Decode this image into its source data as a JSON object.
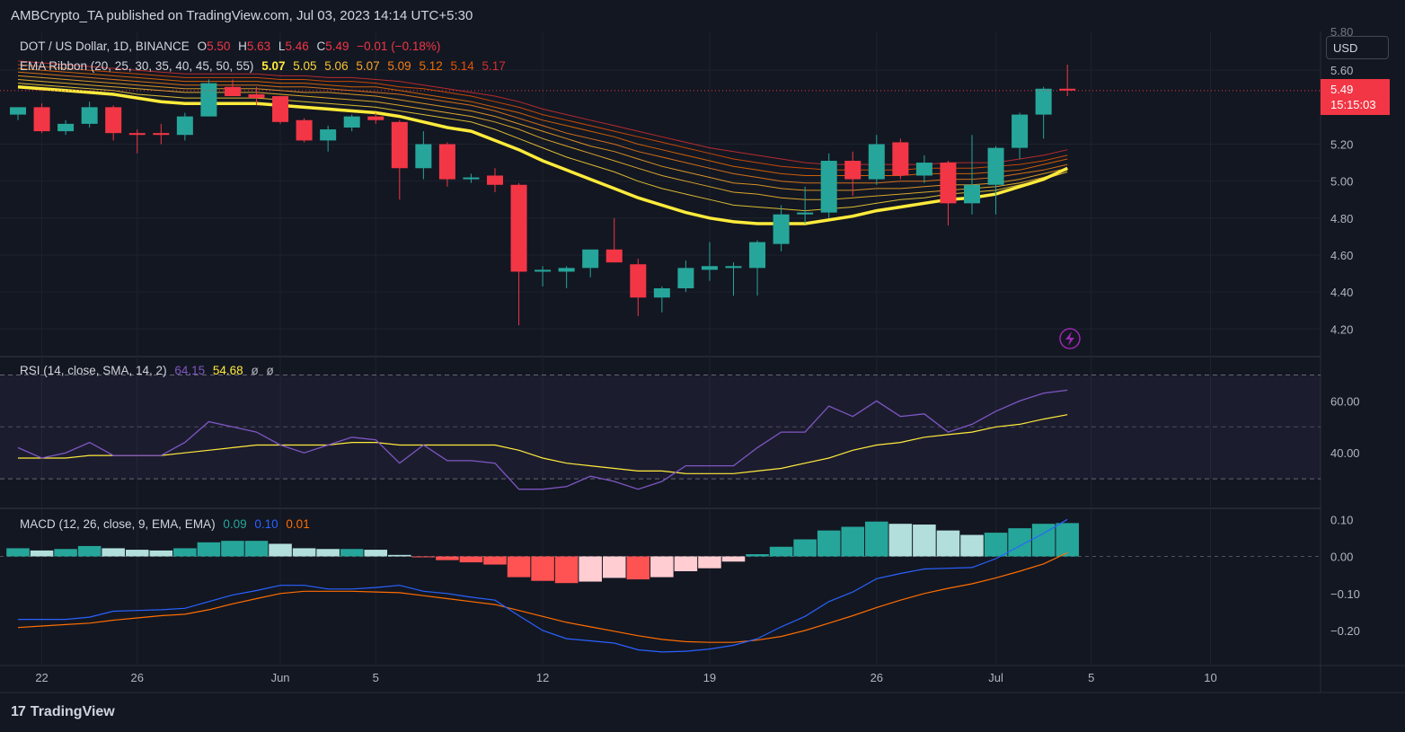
{
  "header": "AMBCrypto_TA published on TradingView.com, Jul 03, 2023 14:14 UTC+5:30",
  "footer_brand": "TradingView",
  "footer_logo_glyph": "17",
  "currency": "USD",
  "last_price": "5.49",
  "countdown": "15:15:03",
  "colors": {
    "bg": "#131722",
    "up": "#26a69a",
    "down": "#f23645",
    "ema_fast": "#ffeb3b",
    "rsi": "#7e57c2",
    "rsi_sma": "#ffeb3b",
    "macd": "#2962ff",
    "signal": "#ff6d00"
  },
  "price_legend": {
    "symbol": "DOT / US Dollar, 1D, BINANCE",
    "o_label": "O",
    "o": "5.50",
    "h_label": "H",
    "h": "5.63",
    "l_label": "L",
    "l": "5.46",
    "c_label": "C",
    "c": "5.49",
    "change": "−0.01 (−0.18%)"
  },
  "ema_legend": {
    "label": "EMA Ribbon (20, 25, 30, 35, 40, 45, 50, 55)",
    "values": [
      "5.07",
      "5.05",
      "5.06",
      "5.07",
      "5.09",
      "5.12",
      "5.14",
      "5.17"
    ]
  },
  "rsi_legend": {
    "label": "RSI (14, close, SMA, 14, 2)",
    "rsi": "64.15",
    "sma": "54.68",
    "extra1": "ø",
    "extra2": "ø"
  },
  "macd_legend": {
    "label": "MACD (12, 26, close, 9, EMA, EMA)",
    "hist": "0.09",
    "macd": "0.10",
    "signal": "0.01"
  },
  "chart_data": {
    "type": "candlestick",
    "title": "DOT / US Dollar, 1D, BINANCE",
    "x_labels": [
      {
        "day": 1,
        "label": "22"
      },
      {
        "day": 5,
        "label": "26"
      },
      {
        "day": 11,
        "label": "Jun"
      },
      {
        "day": 15,
        "label": "5"
      },
      {
        "day": 22,
        "label": "12"
      },
      {
        "day": 29,
        "label": "19"
      },
      {
        "day": 36,
        "label": "26"
      },
      {
        "day": 41,
        "label": "Jul"
      },
      {
        "day": 45,
        "label": "5"
      },
      {
        "day": 50,
        "label": "10"
      }
    ],
    "price_axis": {
      "ylim": [
        4.07,
        5.81
      ],
      "ticks": [
        "5.60",
        "5.20",
        "5.00",
        "4.80",
        "4.60",
        "4.40",
        "4.20"
      ],
      "top_partial": "5.80"
    },
    "candles": [
      {
        "o": 5.36,
        "h": 5.39,
        "l": 5.33,
        "c": 5.4
      },
      {
        "o": 5.4,
        "h": 5.42,
        "l": 5.26,
        "c": 5.27
      },
      {
        "o": 5.27,
        "h": 5.33,
        "l": 5.25,
        "c": 5.31
      },
      {
        "o": 5.31,
        "h": 5.43,
        "l": 5.29,
        "c": 5.4
      },
      {
        "o": 5.4,
        "h": 5.41,
        "l": 5.22,
        "c": 5.26
      },
      {
        "o": 5.26,
        "h": 5.28,
        "l": 5.15,
        "c": 5.25
      },
      {
        "o": 5.26,
        "h": 5.31,
        "l": 5.2,
        "c": 5.25
      },
      {
        "o": 5.25,
        "h": 5.37,
        "l": 5.22,
        "c": 5.35
      },
      {
        "o": 5.35,
        "h": 5.55,
        "l": 5.35,
        "c": 5.53
      },
      {
        "o": 5.51,
        "h": 5.55,
        "l": 5.46,
        "c": 5.46
      },
      {
        "o": 5.47,
        "h": 5.51,
        "l": 5.41,
        "c": 5.45
      },
      {
        "o": 5.46,
        "h": 5.46,
        "l": 5.31,
        "c": 5.32
      },
      {
        "o": 5.33,
        "h": 5.34,
        "l": 5.21,
        "c": 5.22
      },
      {
        "o": 5.22,
        "h": 5.3,
        "l": 5.16,
        "c": 5.28
      },
      {
        "o": 5.29,
        "h": 5.36,
        "l": 5.27,
        "c": 5.35
      },
      {
        "o": 5.35,
        "h": 5.37,
        "l": 5.31,
        "c": 5.33
      },
      {
        "o": 5.32,
        "h": 5.33,
        "l": 4.9,
        "c": 5.07
      },
      {
        "o": 5.07,
        "h": 5.27,
        "l": 5.01,
        "c": 5.2
      },
      {
        "o": 5.2,
        "h": 5.21,
        "l": 4.97,
        "c": 5.01
      },
      {
        "o": 5.01,
        "h": 5.04,
        "l": 4.99,
        "c": 5.02
      },
      {
        "o": 5.03,
        "h": 5.07,
        "l": 4.94,
        "c": 4.98
      },
      {
        "o": 4.98,
        "h": 4.99,
        "l": 4.22,
        "c": 4.51
      },
      {
        "o": 4.51,
        "h": 4.54,
        "l": 4.43,
        "c": 4.52
      },
      {
        "o": 4.51,
        "h": 4.54,
        "l": 4.42,
        "c": 4.53
      },
      {
        "o": 4.53,
        "h": 4.62,
        "l": 4.48,
        "c": 4.63
      },
      {
        "o": 4.63,
        "h": 4.8,
        "l": 4.56,
        "c": 4.56
      },
      {
        "o": 4.55,
        "h": 4.58,
        "l": 4.27,
        "c": 4.37
      },
      {
        "o": 4.37,
        "h": 4.43,
        "l": 4.29,
        "c": 4.42
      },
      {
        "o": 4.42,
        "h": 4.57,
        "l": 4.4,
        "c": 4.53
      },
      {
        "o": 4.52,
        "h": 4.67,
        "l": 4.46,
        "c": 4.54
      },
      {
        "o": 4.53,
        "h": 4.56,
        "l": 4.38,
        "c": 4.54
      },
      {
        "o": 4.53,
        "h": 4.68,
        "l": 4.38,
        "c": 4.67
      },
      {
        "o": 4.66,
        "h": 4.87,
        "l": 4.62,
        "c": 4.82
      },
      {
        "o": 4.82,
        "h": 4.97,
        "l": 4.77,
        "c": 4.83
      },
      {
        "o": 4.83,
        "h": 5.15,
        "l": 4.8,
        "c": 5.11
      },
      {
        "o": 5.11,
        "h": 5.16,
        "l": 4.92,
        "c": 5.01
      },
      {
        "o": 5.01,
        "h": 5.25,
        "l": 4.98,
        "c": 5.2
      },
      {
        "o": 5.21,
        "h": 5.23,
        "l": 5.01,
        "c": 5.03
      },
      {
        "o": 5.03,
        "h": 5.14,
        "l": 4.99,
        "c": 5.1
      },
      {
        "o": 5.1,
        "h": 5.11,
        "l": 4.76,
        "c": 4.88
      },
      {
        "o": 4.88,
        "h": 5.25,
        "l": 4.82,
        "c": 4.98
      },
      {
        "o": 4.98,
        "h": 5.19,
        "l": 4.82,
        "c": 5.18
      },
      {
        "o": 5.18,
        "h": 5.37,
        "l": 5.12,
        "c": 5.36
      },
      {
        "o": 5.36,
        "h": 5.51,
        "l": 5.23,
        "c": 5.5
      },
      {
        "o": 5.5,
        "h": 5.63,
        "l": 5.46,
        "c": 5.49
      }
    ],
    "ema_ribbon": {
      "periods": [
        20,
        25,
        30,
        35,
        40,
        45,
        50,
        55
      ],
      "series": [
        [
          5.51,
          5.5,
          5.49,
          5.48,
          5.47,
          5.45,
          5.43,
          5.42,
          5.42,
          5.42,
          5.42,
          5.41,
          5.4,
          5.39,
          5.38,
          5.37,
          5.35,
          5.32,
          5.29,
          5.27,
          5.22,
          5.17,
          5.11,
          5.06,
          5.01,
          4.96,
          4.91,
          4.87,
          4.83,
          4.8,
          4.78,
          4.77,
          4.77,
          4.77,
          4.79,
          4.81,
          4.84,
          4.86,
          4.88,
          4.9,
          4.91,
          4.93,
          4.97,
          5.01,
          5.07
        ],
        [
          5.53,
          5.52,
          5.51,
          5.5,
          5.49,
          5.47,
          5.46,
          5.45,
          5.45,
          5.45,
          5.45,
          5.44,
          5.43,
          5.42,
          5.41,
          5.4,
          5.38,
          5.36,
          5.34,
          5.32,
          5.28,
          5.23,
          5.18,
          5.13,
          5.09,
          5.05,
          5.0,
          4.96,
          4.93,
          4.9,
          4.87,
          4.86,
          4.85,
          4.84,
          4.85,
          4.86,
          4.88,
          4.9,
          4.91,
          4.93,
          4.94,
          4.95,
          4.98,
          5.01,
          5.05
        ],
        [
          5.55,
          5.54,
          5.53,
          5.52,
          5.51,
          5.5,
          5.49,
          5.48,
          5.48,
          5.48,
          5.48,
          5.47,
          5.46,
          5.45,
          5.44,
          5.43,
          5.41,
          5.39,
          5.37,
          5.35,
          5.32,
          5.28,
          5.23,
          5.19,
          5.15,
          5.11,
          5.07,
          5.03,
          5.0,
          4.97,
          4.94,
          4.93,
          4.91,
          4.9,
          4.9,
          4.91,
          4.92,
          4.93,
          4.94,
          4.95,
          4.96,
          4.97,
          4.99,
          5.02,
          5.06
        ],
        [
          5.57,
          5.56,
          5.55,
          5.54,
          5.53,
          5.52,
          5.51,
          5.5,
          5.5,
          5.5,
          5.5,
          5.49,
          5.48,
          5.48,
          5.47,
          5.46,
          5.44,
          5.42,
          5.4,
          5.38,
          5.35,
          5.31,
          5.27,
          5.23,
          5.19,
          5.16,
          5.12,
          5.08,
          5.05,
          5.02,
          4.99,
          4.98,
          4.96,
          4.95,
          4.95,
          4.95,
          4.96,
          4.96,
          4.97,
          4.98,
          4.98,
          4.99,
          5.01,
          5.04,
          5.07
        ],
        [
          5.59,
          5.58,
          5.57,
          5.56,
          5.55,
          5.54,
          5.53,
          5.52,
          5.52,
          5.52,
          5.52,
          5.51,
          5.51,
          5.5,
          5.49,
          5.48,
          5.47,
          5.45,
          5.43,
          5.41,
          5.38,
          5.34,
          5.3,
          5.26,
          5.23,
          5.2,
          5.16,
          5.13,
          5.1,
          5.07,
          5.04,
          5.02,
          5.0,
          4.99,
          4.99,
          4.99,
          4.99,
          5.0,
          5.0,
          5.01,
          5.01,
          5.02,
          5.04,
          5.06,
          5.09
        ],
        [
          5.61,
          5.6,
          5.59,
          5.58,
          5.57,
          5.56,
          5.55,
          5.54,
          5.54,
          5.54,
          5.54,
          5.53,
          5.53,
          5.52,
          5.51,
          5.51,
          5.49,
          5.47,
          5.45,
          5.43,
          5.4,
          5.37,
          5.33,
          5.3,
          5.27,
          5.24,
          5.2,
          5.17,
          5.14,
          5.11,
          5.08,
          5.06,
          5.04,
          5.03,
          5.03,
          5.03,
          5.03,
          5.03,
          5.04,
          5.04,
          5.04,
          5.05,
          5.06,
          5.09,
          5.12
        ],
        [
          5.63,
          5.62,
          5.61,
          5.6,
          5.59,
          5.58,
          5.57,
          5.56,
          5.56,
          5.56,
          5.56,
          5.55,
          5.55,
          5.54,
          5.54,
          5.53,
          5.51,
          5.5,
          5.48,
          5.46,
          5.43,
          5.4,
          5.36,
          5.33,
          5.3,
          5.27,
          5.24,
          5.21,
          5.18,
          5.15,
          5.12,
          5.1,
          5.08,
          5.07,
          5.06,
          5.06,
          5.06,
          5.06,
          5.07,
          5.07,
          5.07,
          5.08,
          5.09,
          5.11,
          5.14
        ],
        [
          5.65,
          5.64,
          5.63,
          5.62,
          5.61,
          5.6,
          5.59,
          5.58,
          5.58,
          5.58,
          5.58,
          5.57,
          5.57,
          5.56,
          5.56,
          5.55,
          5.54,
          5.52,
          5.5,
          5.48,
          5.46,
          5.43,
          5.39,
          5.36,
          5.33,
          5.3,
          5.27,
          5.24,
          5.21,
          5.18,
          5.16,
          5.14,
          5.12,
          5.1,
          5.09,
          5.09,
          5.09,
          5.09,
          5.09,
          5.1,
          5.1,
          5.1,
          5.12,
          5.14,
          5.17
        ]
      ]
    },
    "rsi": {
      "ylim": [
        20,
        75
      ],
      "ticks": [
        "60.00",
        "40.00"
      ],
      "upper_band": 70,
      "middle_band": 50,
      "lower_band": 30,
      "rsi_values": [
        42,
        38,
        40,
        44,
        39,
        39,
        39,
        44,
        52,
        50,
        48,
        43,
        40,
        43,
        46,
        45,
        36,
        43,
        37,
        37,
        36,
        26,
        26,
        27,
        31,
        29,
        26,
        29,
        35,
        35,
        35,
        42,
        48,
        48,
        58,
        54,
        60,
        54,
        55,
        48,
        51,
        56,
        60,
        63,
        64.15
      ],
      "sma_values": [
        38,
        38,
        38,
        39,
        39,
        39,
        39,
        40,
        41,
        42,
        43,
        43,
        43,
        43,
        44,
        44,
        43,
        43,
        43,
        43,
        43,
        41,
        38,
        36,
        35,
        34,
        33,
        33,
        32,
        32,
        32,
        33,
        34,
        36,
        38,
        41,
        43,
        44,
        46,
        47,
        48,
        50,
        51,
        53,
        54.68
      ]
    },
    "macd": {
      "ylim": [
        -0.28,
        0.12
      ],
      "ticks": [
        "0.10",
        "0.00",
        "−0.10",
        "−0.20"
      ],
      "histogram": [
        0.022,
        0.016,
        0.02,
        0.028,
        0.022,
        0.018,
        0.016,
        0.022,
        0.038,
        0.042,
        0.042,
        0.034,
        0.022,
        0.02,
        0.02,
        0.018,
        0.004,
        -0.002,
        -0.01,
        -0.016,
        -0.022,
        -0.056,
        -0.066,
        -0.072,
        -0.068,
        -0.058,
        -0.062,
        -0.056,
        -0.04,
        -0.032,
        -0.014,
        0.006,
        0.026,
        0.046,
        0.07,
        0.08,
        0.094,
        0.088,
        0.086,
        0.07,
        0.058,
        0.064,
        0.076,
        0.088,
        0.09
      ],
      "macd_line": [
        -0.17,
        -0.17,
        -0.17,
        -0.164,
        -0.148,
        -0.146,
        -0.144,
        -0.14,
        -0.122,
        -0.104,
        -0.092,
        -0.078,
        -0.078,
        -0.088,
        -0.088,
        -0.084,
        -0.078,
        -0.094,
        -0.1,
        -0.11,
        -0.118,
        -0.16,
        -0.2,
        -0.222,
        -0.228,
        -0.234,
        -0.252,
        -0.258,
        -0.256,
        -0.25,
        -0.24,
        -0.222,
        -0.19,
        -0.162,
        -0.122,
        -0.096,
        -0.06,
        -0.046,
        -0.034,
        -0.032,
        -0.03,
        -0.006,
        0.028,
        0.062,
        0.1
      ],
      "signal_line": [
        -0.192,
        -0.188,
        -0.184,
        -0.18,
        -0.172,
        -0.166,
        -0.16,
        -0.156,
        -0.144,
        -0.128,
        -0.114,
        -0.1,
        -0.094,
        -0.094,
        -0.094,
        -0.096,
        -0.098,
        -0.106,
        -0.114,
        -0.122,
        -0.13,
        -0.146,
        -0.162,
        -0.178,
        -0.19,
        -0.202,
        -0.214,
        -0.224,
        -0.23,
        -0.232,
        -0.232,
        -0.226,
        -0.216,
        -0.2,
        -0.18,
        -0.16,
        -0.138,
        -0.118,
        -0.1,
        -0.086,
        -0.074,
        -0.058,
        -0.04,
        -0.02,
        0.01
      ]
    }
  }
}
